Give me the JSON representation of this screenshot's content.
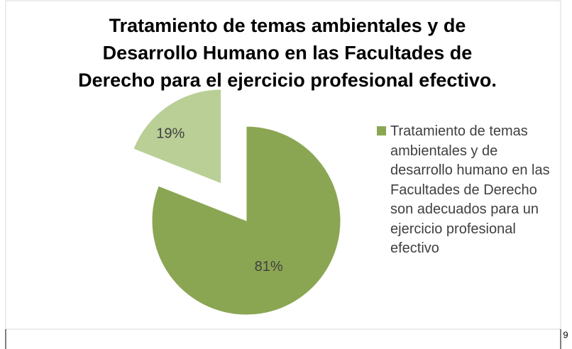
{
  "chart_data": {
    "type": "pie",
    "title": [
      "Tratamiento de temas ambientales y de",
      "Desarrollo Humano en las Facultades de",
      "Derecho para el ejercicio profesional efectivo."
    ],
    "categories": [
      "Tratamiento de temas ambientales y de desarrollo humano en las Facultades de Derecho son adecuados para un ejercicio profesional efectivo",
      null
    ],
    "values": [
      81,
      19
    ],
    "value_labels": [
      "81%",
      "19%"
    ],
    "colors": [
      "#8ba653",
      "#b9cf96"
    ],
    "legend": "right",
    "page_number": "9"
  }
}
